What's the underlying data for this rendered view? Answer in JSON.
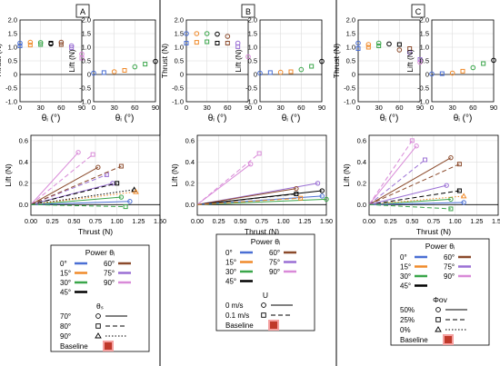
{
  "panels": [
    {
      "label": "A",
      "legend": {
        "power_title": "Power θᵢ",
        "power_items": [
          {
            "label": "0°",
            "color": "#4a6fd4"
          },
          {
            "label": "60°",
            "color": "#8b4a2b"
          },
          {
            "label": "15°",
            "color": "#f08a2a"
          },
          {
            "label": "75°",
            "color": "#9a6fd4"
          },
          {
            "label": "30°",
            "color": "#3aa64a"
          },
          {
            "label": "90°",
            "color": "#d98ad8"
          },
          {
            "label": "45°",
            "color": "#000000"
          }
        ],
        "section_title": "θₛ",
        "section_items": [
          {
            "label": "70°",
            "marker": "circle",
            "line": "solid"
          },
          {
            "label": "80°",
            "marker": "square",
            "line": "dashed"
          },
          {
            "label": "90°",
            "marker": "triangle",
            "line": "dotted"
          }
        ],
        "baseline_label": "Baseline"
      }
    },
    {
      "label": "B",
      "legend": {
        "power_title": "Power θᵢ",
        "power_items": [
          {
            "label": "0°",
            "color": "#4a6fd4"
          },
          {
            "label": "60°",
            "color": "#8b4a2b"
          },
          {
            "label": "15°",
            "color": "#f08a2a"
          },
          {
            "label": "75°",
            "color": "#9a6fd4"
          },
          {
            "label": "30°",
            "color": "#3aa64a"
          },
          {
            "label": "90°",
            "color": "#d98ad8"
          },
          {
            "label": "45°",
            "color": "#000000"
          }
        ],
        "section_title": "U",
        "section_items": [
          {
            "label": "0 m/s",
            "marker": "circle",
            "line": "solid"
          },
          {
            "label": "0.1 m/s",
            "marker": "square",
            "line": "dashed"
          }
        ],
        "baseline_label": "Baseline"
      }
    },
    {
      "label": "C",
      "legend": {
        "power_title": "Power θᵢ",
        "power_items": [
          {
            "label": "0°",
            "color": "#4a6fd4"
          },
          {
            "label": "60°",
            "color": "#8b4a2b"
          },
          {
            "label": "15°",
            "color": "#f08a2a"
          },
          {
            "label": "75°",
            "color": "#9a6fd4"
          },
          {
            "label": "30°",
            "color": "#3aa64a"
          },
          {
            "label": "90°",
            "color": "#d98ad8"
          },
          {
            "label": "45°",
            "color": "#000000"
          }
        ],
        "section_title": "Φov",
        "section_items": [
          {
            "label": "50%",
            "marker": "circle",
            "line": "solid"
          },
          {
            "label": "25%",
            "marker": "square",
            "line": "dashed"
          },
          {
            "label": "0%",
            "marker": "triangle",
            "line": "dotted"
          }
        ],
        "baseline_label": "Baseline"
      }
    }
  ],
  "chart_data": [
    {
      "panel": "A",
      "type": "scatter",
      "ylabel": "Thrust (N)",
      "xlabel": "θᵢ (°)",
      "xlim": [
        0,
        90
      ],
      "ylim": [
        -1.0,
        2.0
      ],
      "xticks": [
        "0",
        "30",
        "60",
        "90"
      ],
      "yticks": [
        "-1.0",
        "-0.5",
        "0",
        "0.5",
        "1.0",
        "1.5",
        "2.0"
      ],
      "points": [
        {
          "x": 0,
          "y": 1.15
        },
        {
          "x": 0,
          "y": 1.05
        },
        {
          "x": 15,
          "y": 1.18
        },
        {
          "x": 15,
          "y": 1.08
        },
        {
          "x": 30,
          "y": 1.17
        },
        {
          "x": 30,
          "y": 1.1
        },
        {
          "x": 45,
          "y": 1.12
        },
        {
          "x": 45,
          "y": 1.15
        },
        {
          "x": 60,
          "y": 1.18
        },
        {
          "x": 60,
          "y": 1.1
        },
        {
          "x": 75,
          "y": 1.05
        },
        {
          "x": 75,
          "y": 0.98
        },
        {
          "x": 90,
          "y": 0.75
        },
        {
          "x": 90,
          "y": 0.6
        }
      ]
    },
    {
      "panel": "A",
      "type": "scatter",
      "ylabel": "Lift (N)",
      "xlabel": "θᵢ (°)",
      "xlim": [
        0,
        90
      ],
      "ylim": [
        -1.0,
        2.0
      ],
      "xticks": [
        "0",
        "30",
        "60",
        "90"
      ],
      "yticks": [
        "-1.0",
        "-0.5",
        "0",
        "0.5",
        "1.0",
        "1.5",
        "2.0"
      ],
      "points": [
        {
          "x": 0,
          "y": 0.05
        },
        {
          "x": 15,
          "y": 0.07
        },
        {
          "x": 30,
          "y": 0.1
        },
        {
          "x": 45,
          "y": 0.15
        },
        {
          "x": 60,
          "y": 0.28
        },
        {
          "x": 75,
          "y": 0.38
        },
        {
          "x": 90,
          "y": 0.48
        }
      ]
    },
    {
      "panel": "A",
      "type": "line",
      "ylabel": "Lift (N)",
      "xlabel": "Thrust (N)",
      "xlim": [
        0,
        1.5
      ],
      "ylim": [
        -0.1,
        0.65
      ],
      "xticks": [
        "0.00",
        "0.25",
        "0.50",
        "0.75",
        "1.00",
        "1.25",
        "1.50"
      ],
      "yticks": [
        "0.0",
        "0.2",
        "0.4",
        "0.6"
      ],
      "series": [
        {
          "color": "#d98ad8",
          "style": "solid",
          "end": [
            0.55,
            0.49
          ]
        },
        {
          "color": "#d98ad8",
          "style": "dashed",
          "end": [
            0.72,
            0.47
          ]
        },
        {
          "color": "#9a6fd4",
          "style": "dashed",
          "end": [
            0.88,
            0.28
          ]
        },
        {
          "color": "#9a6fd4",
          "style": "solid",
          "end": [
            0.95,
            0.2
          ]
        },
        {
          "color": "#8b4a2b",
          "style": "solid",
          "end": [
            0.78,
            0.35
          ]
        },
        {
          "color": "#8b4a2b",
          "style": "dashed",
          "end": [
            1.05,
            0.36
          ]
        },
        {
          "color": "#000000",
          "style": "dashed",
          "end": [
            1.0,
            0.2
          ]
        },
        {
          "color": "#000000",
          "style": "dotted",
          "end": [
            1.2,
            0.14
          ]
        },
        {
          "color": "#3aa64a",
          "style": "solid",
          "end": [
            1.05,
            0.07
          ]
        },
        {
          "color": "#f08a2a",
          "style": "dotted",
          "end": [
            1.22,
            0.12
          ]
        },
        {
          "color": "#4a6fd4",
          "style": "solid",
          "end": [
            1.15,
            0.03
          ]
        },
        {
          "color": "#3aa64a",
          "style": "dashed",
          "end": [
            1.1,
            -0.02
          ]
        }
      ]
    },
    {
      "panel": "B",
      "type": "scatter",
      "ylabel": "Thrust (N)",
      "xlabel": "θᵢ (°)",
      "xlim": [
        0,
        90
      ],
      "ylim": [
        -1.0,
        2.0
      ],
      "xticks": [
        "0",
        "30",
        "60",
        "90"
      ],
      "yticks": [
        "-1.0",
        "-0.5",
        "0",
        "0.5",
        "1.0",
        "1.5",
        "2.0"
      ],
      "points": [
        {
          "x": 0,
          "y": 1.5
        },
        {
          "x": 0,
          "y": 1.15
        },
        {
          "x": 15,
          "y": 1.5
        },
        {
          "x": 15,
          "y": 1.18
        },
        {
          "x": 30,
          "y": 1.5
        },
        {
          "x": 30,
          "y": 1.2
        },
        {
          "x": 45,
          "y": 1.48
        },
        {
          "x": 45,
          "y": 1.15
        },
        {
          "x": 60,
          "y": 1.4
        },
        {
          "x": 60,
          "y": 1.15
        },
        {
          "x": 75,
          "y": 1.15
        },
        {
          "x": 75,
          "y": 1.02
        },
        {
          "x": 90,
          "y": 0.65
        }
      ]
    },
    {
      "panel": "B",
      "type": "scatter",
      "ylabel": "Lift (N)",
      "xlabel": "θᵢ (°)",
      "xlim": [
        0,
        90
      ],
      "ylim": [
        -1.0,
        2.0
      ],
      "xticks": [
        "0",
        "30",
        "60",
        "90"
      ],
      "yticks": [
        "-1.0",
        "-0.5",
        "0",
        "0.5",
        "1.0",
        "1.5",
        "2.0"
      ],
      "points": [
        {
          "x": 0,
          "y": 0.05
        },
        {
          "x": 15,
          "y": 0.07
        },
        {
          "x": 30,
          "y": 0.08
        },
        {
          "x": 45,
          "y": 0.1
        },
        {
          "x": 60,
          "y": 0.18
        },
        {
          "x": 75,
          "y": 0.3
        },
        {
          "x": 90,
          "y": 0.48
        }
      ]
    },
    {
      "panel": "B",
      "type": "line",
      "ylabel": "Lift (N)",
      "xlabel": "Thrust (N)",
      "xlim": [
        0,
        1.5
      ],
      "ylim": [
        -0.1,
        0.65
      ],
      "xticks": [
        "0.00",
        "0.25",
        "0.50",
        "0.75",
        "1.00",
        "1.25",
        "1.50"
      ],
      "yticks": [
        "0.0",
        "0.2",
        "0.4",
        "0.6"
      ],
      "series": [
        {
          "color": "#d98ad8",
          "style": "dashed",
          "end": [
            0.72,
            0.48
          ]
        },
        {
          "color": "#d98ad8",
          "style": "solid",
          "end": [
            0.62,
            0.38
          ]
        },
        {
          "color": "#9a6fd4",
          "style": "solid",
          "end": [
            1.4,
            0.2
          ]
        },
        {
          "color": "#8b4a2b",
          "style": "solid",
          "end": [
            1.15,
            0.15
          ]
        },
        {
          "color": "#000000",
          "style": "solid",
          "end": [
            1.45,
            0.13
          ]
        },
        {
          "color": "#000000",
          "style": "dashed",
          "end": [
            1.15,
            0.1
          ]
        },
        {
          "color": "#3aa64a",
          "style": "solid",
          "end": [
            1.5,
            0.05
          ]
        },
        {
          "color": "#4a6fd4",
          "style": "solid",
          "end": [
            1.45,
            0.08
          ]
        },
        {
          "color": "#f08a2a",
          "style": "dashed",
          "end": [
            1.2,
            0.06
          ]
        }
      ]
    },
    {
      "panel": "C",
      "type": "scatter",
      "ylabel": "Thrust (N)",
      "xlabel": "θᵢ (°)",
      "xlim": [
        0,
        90
      ],
      "ylim": [
        -1.0,
        2.0
      ],
      "xticks": [
        "0",
        "30",
        "60",
        "90"
      ],
      "yticks": [
        "-1.0",
        "-0.5",
        "0",
        "0.5",
        "1.0",
        "1.5",
        "2.0"
      ],
      "points": [
        {
          "x": 0,
          "y": 1.15
        },
        {
          "x": 0,
          "y": 0.95
        },
        {
          "x": 15,
          "y": 1.1
        },
        {
          "x": 15,
          "y": 1.0
        },
        {
          "x": 30,
          "y": 1.15
        },
        {
          "x": 30,
          "y": 1.05
        },
        {
          "x": 45,
          "y": 1.12
        },
        {
          "x": 60,
          "y": 1.1
        },
        {
          "x": 60,
          "y": 0.9
        },
        {
          "x": 75,
          "y": 0.95
        },
        {
          "x": 75,
          "y": 0.8
        },
        {
          "x": 90,
          "y": 0.55
        },
        {
          "x": 90,
          "y": 0.45
        }
      ]
    },
    {
      "panel": "C",
      "type": "scatter",
      "ylabel": "Lift (N)",
      "xlabel": "θᵢ (°)",
      "xlim": [
        0,
        90
      ],
      "ylim": [
        -1.0,
        2.0
      ],
      "xticks": [
        "0",
        "30",
        "60",
        "90"
      ],
      "yticks": [
        "-1.0",
        "-0.5",
        "0",
        "0.5",
        "1.0",
        "1.5",
        "2.0"
      ],
      "points": [
        {
          "x": 0,
          "y": 0.02
        },
        {
          "x": 15,
          "y": 0.03
        },
        {
          "x": 30,
          "y": 0.05
        },
        {
          "x": 45,
          "y": 0.12
        },
        {
          "x": 60,
          "y": 0.25
        },
        {
          "x": 75,
          "y": 0.4
        },
        {
          "x": 90,
          "y": 0.52
        }
      ]
    },
    {
      "panel": "C",
      "type": "line",
      "ylabel": "Lift (N)",
      "xlabel": "Thrust (N)",
      "xlim": [
        0,
        1.5
      ],
      "ylim": [
        -0.1,
        0.65
      ],
      "xticks": [
        "0.00",
        "0.25",
        "0.50",
        "0.75",
        "1.00",
        "1.25",
        "1.50"
      ],
      "yticks": [
        "0.0",
        "0.2",
        "0.4",
        "0.6"
      ],
      "series": [
        {
          "color": "#d98ad8",
          "style": "dashed",
          "end": [
            0.5,
            0.6
          ]
        },
        {
          "color": "#d98ad8",
          "style": "solid",
          "end": [
            0.55,
            0.55
          ]
        },
        {
          "color": "#9a6fd4",
          "style": "dashed",
          "end": [
            0.65,
            0.42
          ]
        },
        {
          "color": "#8b4a2b",
          "style": "solid",
          "end": [
            0.95,
            0.44
          ]
        },
        {
          "color": "#8b4a2b",
          "style": "dashed",
          "end": [
            1.05,
            0.38
          ]
        },
        {
          "color": "#000000",
          "style": "dashed",
          "end": [
            1.05,
            0.13
          ]
        },
        {
          "color": "#3aa64a",
          "style": "solid",
          "end": [
            0.95,
            0.05
          ]
        },
        {
          "color": "#f08a2a",
          "style": "dotted",
          "end": [
            1.1,
            0.08
          ]
        },
        {
          "color": "#4a6fd4",
          "style": "solid",
          "end": [
            1.1,
            0.02
          ]
        },
        {
          "color": "#9a6fd4",
          "style": "solid",
          "end": [
            0.9,
            0.18
          ]
        },
        {
          "color": "#3aa64a",
          "style": "dashed",
          "end": [
            0.95,
            -0.04
          ]
        }
      ]
    }
  ]
}
